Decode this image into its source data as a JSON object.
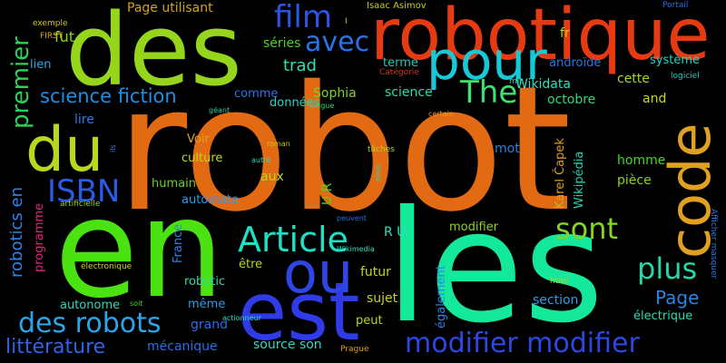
{
  "words": [
    {
      "text": "robot",
      "color": "#e26a12"
    },
    {
      "text": "en",
      "color": "#4ae210"
    },
    {
      "text": "les",
      "color": "#14e89a"
    },
    {
      "text": "des",
      "color": "#95d61c"
    },
    {
      "text": "robotique",
      "color": "#e53a12"
    },
    {
      "text": "du",
      "color": "#b9d81c"
    },
    {
      "text": "est",
      "color": "#2f3be6"
    },
    {
      "text": "ou",
      "color": "#2f46e6"
    },
    {
      "text": "pour",
      "color": "#17c9d6"
    },
    {
      "text": "code",
      "color": "#e0a020"
    },
    {
      "text": "film",
      "color": "#2d54e4"
    },
    {
      "text": "avec",
      "color": "#2a72e6"
    },
    {
      "text": "The",
      "color": "#3fe070"
    },
    {
      "text": "Article",
      "color": "#1de0c4"
    },
    {
      "text": "modifier modifier",
      "color": "#2c48e0"
    },
    {
      "text": "des robots",
      "color": "#2aa5e8"
    },
    {
      "text": "ISBN",
      "color": "#2a5be6"
    },
    {
      "text": "sont",
      "color": "#88d420"
    },
    {
      "text": "plus",
      "color": "#27d7a8"
    },
    {
      "text": "premier",
      "color": "#2ed056"
    },
    {
      "text": "science fiction",
      "color": "#1c8fe6"
    },
    {
      "text": "littérature",
      "color": "#2e65e6"
    },
    {
      "text": "robotics en",
      "color": "#2d83e6"
    },
    {
      "text": "trad",
      "color": "#2ee0b0"
    },
    {
      "text": "Page",
      "color": "#2a84e6"
    },
    {
      "text": "Sophia",
      "color": "#7ad620"
    },
    {
      "text": "séries",
      "color": "#4fd028"
    },
    {
      "text": "Page utilisant",
      "color": "#d0a414"
    },
    {
      "text": "Isaac Asimov",
      "color": "#c8cc20"
    },
    {
      "text": "fut",
      "color": "#85d71f"
    },
    {
      "text": "exemple",
      "color": "#d2c818"
    },
    {
      "text": "FIRST",
      "color": "#e0a020"
    },
    {
      "text": "I",
      "color": "#ccc018"
    },
    {
      "text": "Portail",
      "color": "#2a6de6"
    },
    {
      "text": "système",
      "color": "#1ed6c0"
    },
    {
      "text": "logiciel",
      "color": "#1fd0c0"
    },
    {
      "text": "androïde",
      "color": "#2a75e6"
    },
    {
      "text": "fr",
      "color": "#b6d820"
    },
    {
      "text": "terme",
      "color": "#28c9b2"
    },
    {
      "text": "Catégorie",
      "color": "#d23818"
    },
    {
      "text": "mit",
      "color": "#1ed6c0"
    },
    {
      "text": "Wikidata",
      "color": "#2ee0c0"
    },
    {
      "text": "cette",
      "color": "#a8d620"
    },
    {
      "text": "octobre",
      "color": "#2fd878"
    },
    {
      "text": "and",
      "color": "#c7d81c"
    },
    {
      "text": "données",
      "color": "#23d6c2"
    },
    {
      "text": "comme",
      "color": "#2a73e6"
    },
    {
      "text": "science",
      "color": "#2fd8b0"
    },
    {
      "text": "langue",
      "color": "#2fd878"
    },
    {
      "text": "certain",
      "color": "#e0a020"
    },
    {
      "text": "géant",
      "color": "#2fd0a0"
    },
    {
      "text": "lien",
      "color": "#2da8e6"
    },
    {
      "text": "lire",
      "color": "#2a7ce6"
    },
    {
      "text": "Voir",
      "color": "#e0a020"
    },
    {
      "text": "culture",
      "color": "#c3d81c"
    },
    {
      "text": "humain",
      "color": "#64d424"
    },
    {
      "text": "automate",
      "color": "#2a9ce6"
    },
    {
      "text": "Karel Čapek",
      "color": "#e0a020"
    },
    {
      "text": "Wikipédia",
      "color": "#28cfb0"
    },
    {
      "text": "mot",
      "color": "#2a7ee6"
    },
    {
      "text": "homme",
      "color": "#44d628"
    },
    {
      "text": "pièce",
      "color": "#8cd420"
    },
    {
      "text": "roman",
      "color": "#c6c818"
    },
    {
      "text": "tâches",
      "color": "#b8d41c"
    },
    {
      "text": "autre",
      "color": "#2fd8c0"
    },
    {
      "text": "ainsi",
      "color": "#1fd8b0"
    },
    {
      "text": "ils",
      "color": "#2c80e6"
    },
    {
      "text": "artificielle",
      "color": "#94d21e"
    },
    {
      "text": "programme",
      "color": "#e0247a"
    },
    {
      "text": "aux",
      "color": "#b6d81c"
    },
    {
      "text": "U R",
      "color": "#4ad624"
    },
    {
      "text": "R U",
      "color": "#2ae0c0"
    },
    {
      "text": "peuvent",
      "color": "#2a6de6"
    },
    {
      "text": "modifier",
      "color": "#8fd420"
    },
    {
      "text": "Afficher masquer",
      "color": "#2a7ae6"
    },
    {
      "text": "France",
      "color": "#2a84e6"
    },
    {
      "text": "Wikimedia",
      "color": "#2ee0c0"
    },
    {
      "text": "électronique",
      "color": "#c6d41c"
    },
    {
      "text": "autonome",
      "color": "#2fd8b0"
    },
    {
      "text": "robotic",
      "color": "#2fd8b0"
    },
    {
      "text": "être",
      "color": "#b6d81c"
    },
    {
      "text": "futur",
      "color": "#c3d81c"
    },
    {
      "text": "sujet",
      "color": "#c9d41c"
    },
    {
      "text": "section",
      "color": "#2a9ce6"
    },
    {
      "text": "également",
      "color": "#2a84e6"
    },
    {
      "text": "html",
      "color": "#a8d620"
    },
    {
      "text": "électrique",
      "color": "#2fd8b0"
    },
    {
      "text": "même",
      "color": "#2a9ce6"
    },
    {
      "text": "soit",
      "color": "#4fd028"
    },
    {
      "text": "actionneur",
      "color": "#2ae0c0"
    },
    {
      "text": "grand",
      "color": "#2a6de6"
    },
    {
      "text": "peut",
      "color": "#b6d81c"
    },
    {
      "text": "mécanique",
      "color": "#2a6de6"
    },
    {
      "text": "source son",
      "color": "#2fd8c0"
    },
    {
      "text": "Prague",
      "color": "#e0a020"
    }
  ]
}
